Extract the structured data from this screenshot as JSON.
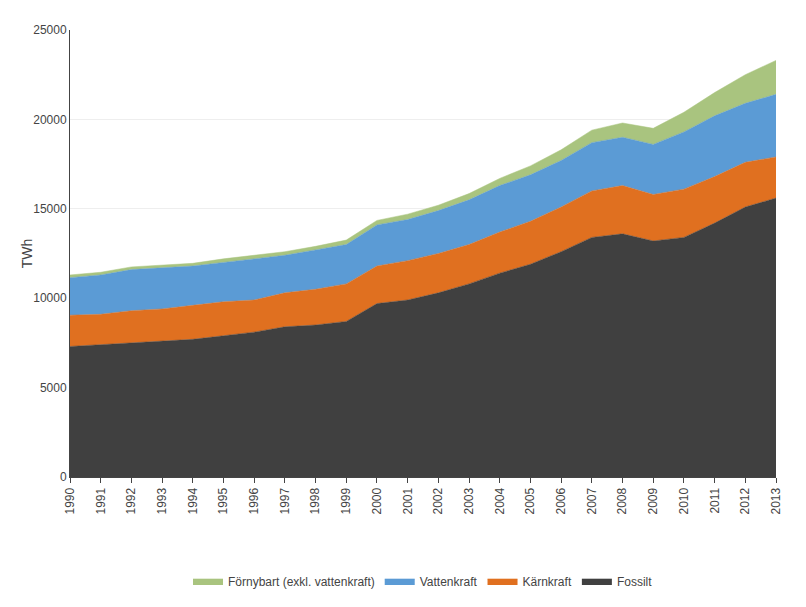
{
  "chart_data": {
    "type": "area",
    "stacked": true,
    "x": [
      1990,
      1991,
      1992,
      1993,
      1994,
      1995,
      1996,
      1997,
      1998,
      1999,
      2000,
      2001,
      2002,
      2003,
      2004,
      2005,
      2006,
      2007,
      2008,
      2009,
      2010,
      2011,
      2012,
      2013
    ],
    "xlim": [
      1990,
      2013
    ],
    "xticks": [
      1990,
      1991,
      1992,
      1993,
      1994,
      1995,
      1996,
      1997,
      1998,
      1999,
      2000,
      2001,
      2002,
      2003,
      2004,
      2005,
      2006,
      2007,
      2008,
      2009,
      2010,
      2011,
      2012,
      2013
    ],
    "ylabel": "TWh",
    "ylim": [
      0,
      25000
    ],
    "yticks": [
      0,
      5000,
      10000,
      15000,
      20000,
      25000
    ],
    "grid": "y",
    "legend": "bottom",
    "series": [
      {
        "name": "Fossilt",
        "color": "#404040",
        "values": [
          7300,
          7400,
          7500,
          7600,
          7700,
          7900,
          8100,
          8400,
          8500,
          8700,
          9700,
          9900,
          10300,
          10800,
          11400,
          11900,
          12600,
          13400,
          13600,
          13200,
          13400,
          14200,
          15100,
          15600
        ]
      },
      {
        "name": "Kärnkraft",
        "color": "#E07020",
        "values": [
          1750,
          1700,
          1800,
          1800,
          1900,
          1900,
          1800,
          1900,
          2000,
          2100,
          2100,
          2200,
          2200,
          2200,
          2300,
          2400,
          2500,
          2600,
          2700,
          2600,
          2700,
          2600,
          2500,
          2300
        ]
      },
      {
        "name": "Vattenkraft",
        "color": "#5B9BD5",
        "values": [
          2100,
          2200,
          2300,
          2300,
          2200,
          2200,
          2300,
          2100,
          2200,
          2200,
          2300,
          2300,
          2400,
          2500,
          2600,
          2600,
          2600,
          2700,
          2700,
          2800,
          3200,
          3400,
          3300,
          3500
        ]
      },
      {
        "name": "Förnybart (exkl. vattenkraft)",
        "color": "#A9C47F",
        "values": [
          150,
          150,
          150,
          150,
          150,
          200,
          200,
          200,
          200,
          250,
          250,
          300,
          300,
          350,
          400,
          500,
          600,
          700,
          800,
          900,
          1100,
          1300,
          1600,
          1900
        ]
      }
    ]
  }
}
